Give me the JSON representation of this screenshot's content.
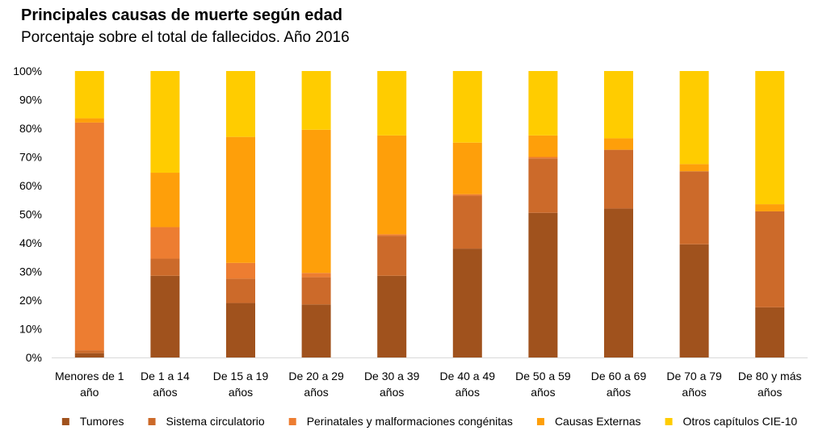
{
  "chart_data": {
    "type": "bar",
    "stacked": true,
    "title": "Principales causas de muerte según edad",
    "subtitle": "Porcentaje sobre el total de fallecidos. Año 2016",
    "categories": [
      [
        "Menores de 1",
        "año"
      ],
      [
        "De 1 a 14",
        "años"
      ],
      [
        "De 15 a 19",
        "años"
      ],
      [
        "De 20 a 29",
        "años"
      ],
      [
        "De 30 a 39",
        "años"
      ],
      [
        "De 40 a 49",
        "años"
      ],
      [
        "De 50 a 59",
        "años"
      ],
      [
        "De 60 a 69",
        "años"
      ],
      [
        "De 70 a 79",
        "años"
      ],
      [
        "De 80 y más",
        "años"
      ]
    ],
    "ylim": [
      0,
      100
    ],
    "yticks": [
      "0%",
      "10%",
      "20%",
      "30%",
      "40%",
      "50%",
      "60%",
      "70%",
      "80%",
      "90%",
      "100%"
    ],
    "grid": false,
    "legend_position": "bottom",
    "series": [
      {
        "name": "Tumores",
        "color": "#a0521d",
        "values": [
          1.5,
          28.5,
          19,
          18.5,
          28.5,
          38,
          50.5,
          52,
          39.5,
          17.5
        ]
      },
      {
        "name": "Sistema circulatorio",
        "color": "#cc6a2a",
        "values": [
          1,
          6,
          8.5,
          9.5,
          14,
          18.5,
          19,
          20.5,
          25.5,
          33.5
        ]
      },
      {
        "name": "Perinatales y malformaciones congénitas",
        "color": "#ed7d31",
        "values": [
          79.5,
          11,
          5.5,
          1.5,
          0.5,
          0.5,
          0.5,
          0,
          0,
          0
        ]
      },
      {
        "name": "Causas Externas",
        "color": "#fe9f0a",
        "values": [
          1.5,
          19,
          44,
          50,
          34.5,
          18,
          7.5,
          4,
          2.5,
          2.5
        ]
      },
      {
        "name": "Otros capítulos CIE-10",
        "color": "#ffcc00",
        "values": [
          16.5,
          35.5,
          23,
          20.5,
          22.5,
          25,
          22.5,
          23.5,
          32.5,
          46.5
        ]
      }
    ]
  }
}
